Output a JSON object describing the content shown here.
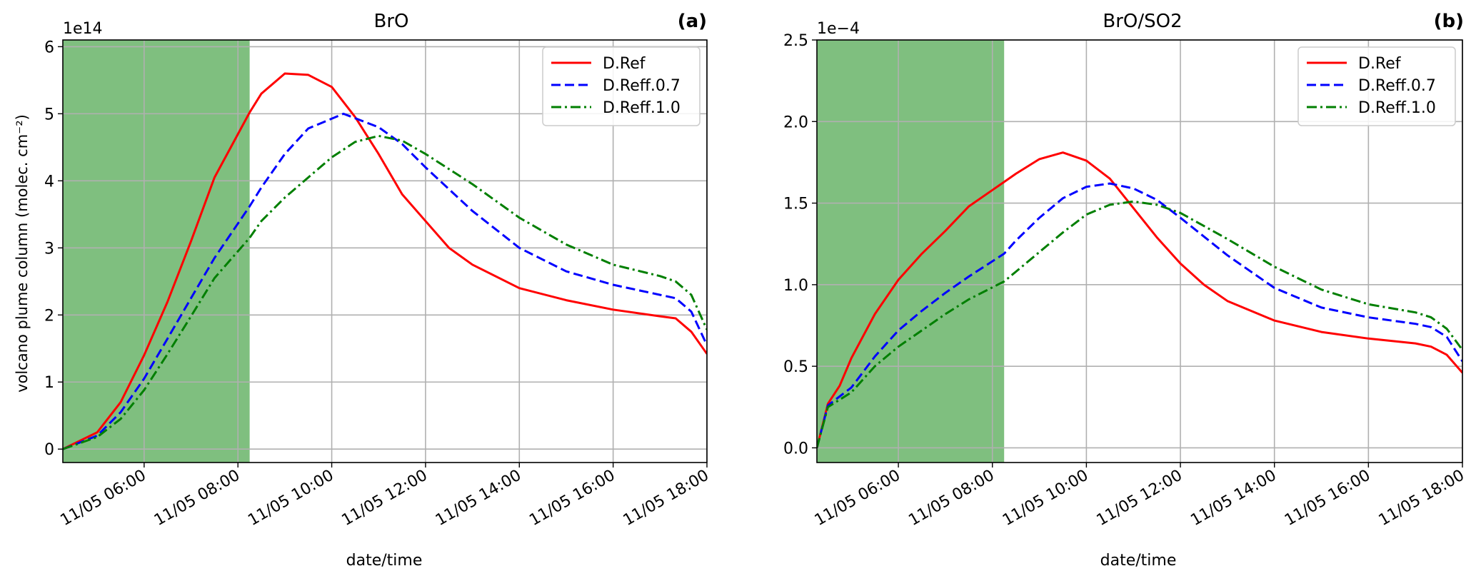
{
  "chart_data": [
    {
      "type": "line",
      "title": "BrO",
      "panel_label": "(a)",
      "xlabel": "date/time",
      "ylabel": "volcano plume column (molec. cm⁻²)",
      "y_multiplier": "1e14",
      "xlim": [
        "11/05 04:16",
        "11/05 18:00"
      ],
      "ylim": [
        -0.2,
        6.1
      ],
      "x_ticks": [
        "11/05 06:00",
        "11/05 08:00",
        "11/05 10:00",
        "11/05 12:00",
        "11/05 14:00",
        "11/05 16:00",
        "11/05 18:00"
      ],
      "y_ticks": [
        0,
        1,
        2,
        3,
        4,
        5,
        6
      ],
      "grid": true,
      "legend_position": "top-right",
      "shaded_region": {
        "from": "11/05 04:16",
        "to": "11/05 08:15",
        "color": "#7fbf7f"
      },
      "series": [
        {
          "name": "D.Ref",
          "color": "#ff0000",
          "dash": "solid",
          "points": [
            [
              "11/05 04:16",
              0
            ],
            [
              "11/05 05:00",
              0.25
            ],
            [
              "11/05 05:30",
              0.7
            ],
            [
              "11/05 06:00",
              1.4
            ],
            [
              "11/05 06:30",
              2.2
            ],
            [
              "11/05 07:00",
              3.1
            ],
            [
              "11/05 07:30",
              4.05
            ],
            [
              "11/05 08:15",
              5.02
            ],
            [
              "11/05 08:30",
              5.3
            ],
            [
              "11/05 09:00",
              5.6
            ],
            [
              "11/05 09:30",
              5.58
            ],
            [
              "11/05 10:00",
              5.4
            ],
            [
              "11/05 10:30",
              4.95
            ],
            [
              "11/05 11:00",
              4.4
            ],
            [
              "11/05 11:30",
              3.8
            ],
            [
              "11/05 12:00",
              3.4
            ],
            [
              "11/05 12:30",
              3.0
            ],
            [
              "11/05 13:00",
              2.75
            ],
            [
              "11/05 14:00",
              2.4
            ],
            [
              "11/05 15:00",
              2.22
            ],
            [
              "11/05 16:00",
              2.08
            ],
            [
              "11/05 17:00",
              1.98
            ],
            [
              "11/05 17:20",
              1.95
            ],
            [
              "11/05 17:40",
              1.75
            ],
            [
              "11/05 18:00",
              1.42
            ]
          ]
        },
        {
          "name": "D.Reff.0.7",
          "color": "#0000ff",
          "dash": "dashed",
          "points": [
            [
              "11/05 04:16",
              0
            ],
            [
              "11/05 05:00",
              0.2
            ],
            [
              "11/05 05:30",
              0.55
            ],
            [
              "11/05 06:00",
              1.05
            ],
            [
              "11/05 06:30",
              1.65
            ],
            [
              "11/05 07:00",
              2.25
            ],
            [
              "11/05 07:30",
              2.85
            ],
            [
              "11/05 08:15",
              3.62
            ],
            [
              "11/05 08:30",
              3.9
            ],
            [
              "11/05 09:00",
              4.4
            ],
            [
              "11/05 09:30",
              4.78
            ],
            [
              "11/05 10:15",
              5.0
            ],
            [
              "11/05 11:00",
              4.8
            ],
            [
              "11/05 11:30",
              4.55
            ],
            [
              "11/05 12:00",
              4.2
            ],
            [
              "11/05 13:00",
              3.55
            ],
            [
              "11/05 14:00",
              3.0
            ],
            [
              "11/05 15:00",
              2.65
            ],
            [
              "11/05 16:00",
              2.45
            ],
            [
              "11/05 17:00",
              2.3
            ],
            [
              "11/05 17:20",
              2.25
            ],
            [
              "11/05 17:40",
              2.05
            ],
            [
              "11/05 18:00",
              1.55
            ]
          ]
        },
        {
          "name": "D.Reff.1.0",
          "color": "#007f00",
          "dash": "dashdot",
          "points": [
            [
              "11/05 04:16",
              0
            ],
            [
              "11/05 05:00",
              0.18
            ],
            [
              "11/05 05:30",
              0.45
            ],
            [
              "11/05 06:00",
              0.88
            ],
            [
              "11/05 06:30",
              1.42
            ],
            [
              "11/05 07:00",
              1.98
            ],
            [
              "11/05 07:30",
              2.55
            ],
            [
              "11/05 08:15",
              3.15
            ],
            [
              "11/05 08:30",
              3.4
            ],
            [
              "11/05 09:00",
              3.75
            ],
            [
              "11/05 09:30",
              4.05
            ],
            [
              "11/05 10:00",
              4.35
            ],
            [
              "11/05 10:30",
              4.58
            ],
            [
              "11/05 11:00",
              4.67
            ],
            [
              "11/05 11:30",
              4.6
            ],
            [
              "11/05 12:00",
              4.4
            ],
            [
              "11/05 13:00",
              3.95
            ],
            [
              "11/05 14:00",
              3.45
            ],
            [
              "11/05 15:00",
              3.05
            ],
            [
              "11/05 16:00",
              2.75
            ],
            [
              "11/05 17:00",
              2.58
            ],
            [
              "11/05 17:20",
              2.5
            ],
            [
              "11/05 17:40",
              2.3
            ],
            [
              "11/05 18:00",
              1.78
            ]
          ]
        }
      ]
    },
    {
      "type": "line",
      "title": "BrO/SO2",
      "panel_label": "(b)",
      "xlabel": "date/time",
      "ylabel": "",
      "y_multiplier": "1e−4",
      "xlim": [
        "11/05 04:16",
        "11/05 18:00"
      ],
      "ylim": [
        -0.09,
        2.5
      ],
      "x_ticks": [
        "11/05 06:00",
        "11/05 08:00",
        "11/05 10:00",
        "11/05 12:00",
        "11/05 14:00",
        "11/05 16:00",
        "11/05 18:00"
      ],
      "y_ticks": [
        "0.0",
        "0.5",
        "1.0",
        "1.5",
        "2.0",
        "2.5"
      ],
      "grid": true,
      "legend_position": "top-right",
      "shaded_region": {
        "from": "11/05 04:16",
        "to": "11/05 08:15",
        "color": "#7fbf7f"
      },
      "series": [
        {
          "name": "D.Ref",
          "color": "#ff0000",
          "dash": "solid",
          "points": [
            [
              "11/05 04:16",
              0
            ],
            [
              "11/05 04:30",
              0.27
            ],
            [
              "11/05 04:45",
              0.38
            ],
            [
              "11/05 05:00",
              0.55
            ],
            [
              "11/05 05:30",
              0.82
            ],
            [
              "11/05 06:00",
              1.03
            ],
            [
              "11/05 06:30",
              1.19
            ],
            [
              "11/05 07:00",
              1.33
            ],
            [
              "11/05 07:30",
              1.48
            ],
            [
              "11/05 08:00",
              1.58
            ],
            [
              "11/05 08:15",
              1.63
            ],
            [
              "11/05 08:30",
              1.68
            ],
            [
              "11/05 09:00",
              1.77
            ],
            [
              "11/05 09:30",
              1.81
            ],
            [
              "11/05 10:00",
              1.76
            ],
            [
              "11/05 10:30",
              1.65
            ],
            [
              "11/05 11:00",
              1.47
            ],
            [
              "11/05 11:30",
              1.29
            ],
            [
              "11/05 12:00",
              1.13
            ],
            [
              "11/05 12:30",
              1.0
            ],
            [
              "11/05 13:00",
              0.9
            ],
            [
              "11/05 14:00",
              0.78
            ],
            [
              "11/05 15:00",
              0.71
            ],
            [
              "11/05 16:00",
              0.67
            ],
            [
              "11/05 17:00",
              0.64
            ],
            [
              "11/05 17:20",
              0.62
            ],
            [
              "11/05 17:40",
              0.57
            ],
            [
              "11/05 18:00",
              0.46
            ]
          ]
        },
        {
          "name": "D.Reff.0.7",
          "color": "#0000ff",
          "dash": "dashed",
          "points": [
            [
              "11/05 04:16",
              0
            ],
            [
              "11/05 04:30",
              0.26
            ],
            [
              "11/05 05:00",
              0.37
            ],
            [
              "11/05 05:30",
              0.56
            ],
            [
              "11/05 06:00",
              0.72
            ],
            [
              "11/05 06:30",
              0.84
            ],
            [
              "11/05 07:00",
              0.95
            ],
            [
              "11/05 07:30",
              1.05
            ],
            [
              "11/05 08:15",
              1.19
            ],
            [
              "11/05 08:30",
              1.27
            ],
            [
              "11/05 09:00",
              1.41
            ],
            [
              "11/05 09:30",
              1.53
            ],
            [
              "11/05 10:00",
              1.6
            ],
            [
              "11/05 10:30",
              1.62
            ],
            [
              "11/05 11:00",
              1.59
            ],
            [
              "11/05 11:30",
              1.52
            ],
            [
              "11/05 12:00",
              1.41
            ],
            [
              "11/05 13:00",
              1.18
            ],
            [
              "11/05 14:00",
              0.98
            ],
            [
              "11/05 15:00",
              0.86
            ],
            [
              "11/05 16:00",
              0.8
            ],
            [
              "11/05 17:00",
              0.76
            ],
            [
              "11/05 17:20",
              0.74
            ],
            [
              "11/05 17:40",
              0.68
            ],
            [
              "11/05 18:00",
              0.53
            ]
          ]
        },
        {
          "name": "D.Reff.1.0",
          "color": "#007f00",
          "dash": "dashdot",
          "points": [
            [
              "11/05 04:16",
              0
            ],
            [
              "11/05 04:30",
              0.25
            ],
            [
              "11/05 05:00",
              0.34
            ],
            [
              "11/05 05:30",
              0.5
            ],
            [
              "11/05 06:00",
              0.62
            ],
            [
              "11/05 06:30",
              0.72
            ],
            [
              "11/05 07:00",
              0.82
            ],
            [
              "11/05 07:30",
              0.91
            ],
            [
              "11/05 08:15",
              1.02
            ],
            [
              "11/05 08:30",
              1.08
            ],
            [
              "11/05 09:00",
              1.2
            ],
            [
              "11/05 09:30",
              1.32
            ],
            [
              "11/05 10:00",
              1.43
            ],
            [
              "11/05 10:30",
              1.49
            ],
            [
              "11/05 11:00",
              1.51
            ],
            [
              "11/05 11:30",
              1.49
            ],
            [
              "11/05 12:00",
              1.44
            ],
            [
              "11/05 13:00",
              1.28
            ],
            [
              "11/05 14:00",
              1.11
            ],
            [
              "11/05 15:00",
              0.97
            ],
            [
              "11/05 16:00",
              0.88
            ],
            [
              "11/05 17:00",
              0.83
            ],
            [
              "11/05 17:20",
              0.8
            ],
            [
              "11/05 17:40",
              0.73
            ],
            [
              "11/05 18:00",
              0.6
            ]
          ]
        }
      ]
    }
  ]
}
